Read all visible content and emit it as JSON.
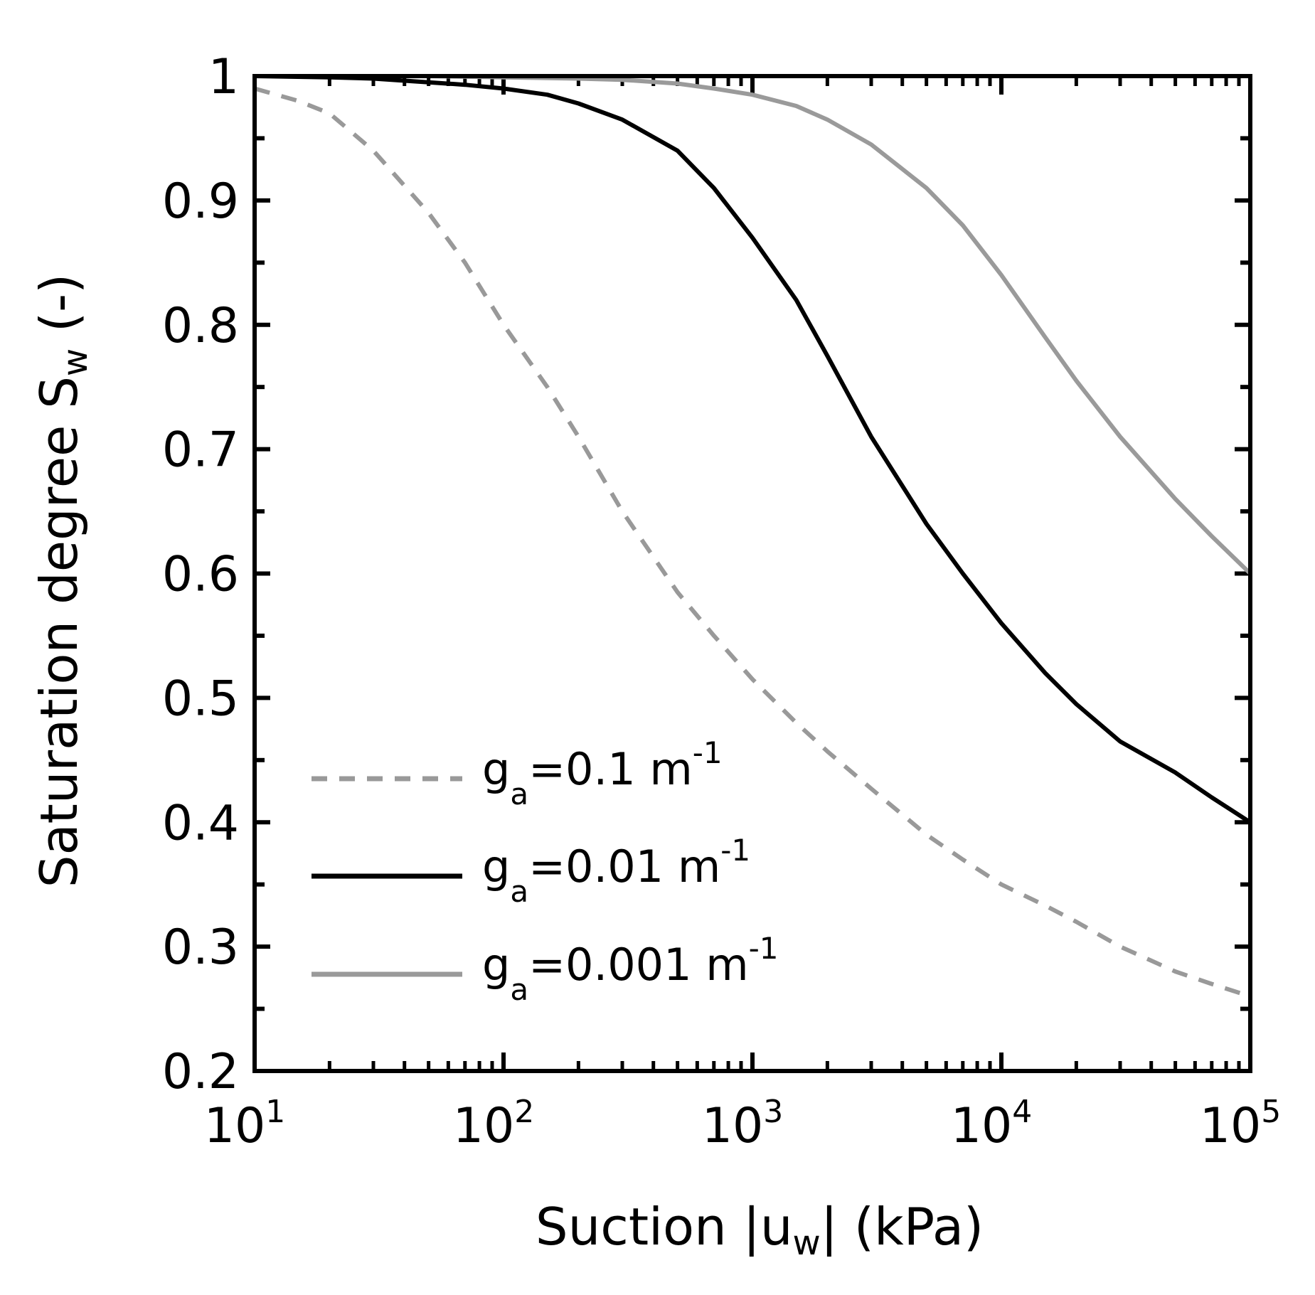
{
  "chart_data": {
    "type": "line",
    "title": "",
    "xscale": "log",
    "xlim": [
      10,
      100000
    ],
    "ylim": [
      0.2,
      1.0
    ],
    "xlabel": {
      "main": "Suction |u",
      "sub": "w",
      "tail": "| (kPa)"
    },
    "ylabel": {
      "main": "Saturation degree S",
      "sub": "w",
      "tail": " (-)"
    },
    "x_ticks": [
      {
        "base": "10",
        "exp": "1",
        "value": 10
      },
      {
        "base": "10",
        "exp": "2",
        "value": 100
      },
      {
        "base": "10",
        "exp": "3",
        "value": 1000
      },
      {
        "base": "10",
        "exp": "4",
        "value": 10000
      },
      {
        "base": "10",
        "exp": "5",
        "value": 100000
      }
    ],
    "y_ticks": [
      {
        "label": "0.2",
        "value": 0.2
      },
      {
        "label": "0.3",
        "value": 0.3
      },
      {
        "label": "0.4",
        "value": 0.4
      },
      {
        "label": "0.5",
        "value": 0.5
      },
      {
        "label": "0.6",
        "value": 0.6
      },
      {
        "label": "0.7",
        "value": 0.7
      },
      {
        "label": "0.8",
        "value": 0.8
      },
      {
        "label": "0.9",
        "value": 0.9
      },
      {
        "label": "1",
        "value": 1.0
      }
    ],
    "legend_position": "lower-left",
    "series": [
      {
        "name": "g_a=0.1 m^-1",
        "legend": {
          "base": "g",
          "sub": "a",
          "text": "=0.1 m",
          "sup": "-1"
        },
        "color": "#999999",
        "style": "dashed",
        "points": [
          [
            10,
            0.99
          ],
          [
            15,
            0.98
          ],
          [
            20,
            0.97
          ],
          [
            30,
            0.94
          ],
          [
            50,
            0.89
          ],
          [
            70,
            0.85
          ],
          [
            100,
            0.8
          ],
          [
            150,
            0.75
          ],
          [
            200,
            0.71
          ],
          [
            300,
            0.65
          ],
          [
            500,
            0.585
          ],
          [
            700,
            0.55
          ],
          [
            1000,
            0.515
          ],
          [
            1500,
            0.48
          ],
          [
            2000,
            0.457
          ],
          [
            3000,
            0.427
          ],
          [
            5000,
            0.39
          ],
          [
            7000,
            0.37
          ],
          [
            10000,
            0.35
          ],
          [
            15000,
            0.333
          ],
          [
            20000,
            0.32
          ],
          [
            30000,
            0.3
          ],
          [
            50000,
            0.28
          ],
          [
            70000,
            0.27
          ],
          [
            100000,
            0.26
          ]
        ]
      },
      {
        "name": "g_a=0.01 m^-1",
        "legend": {
          "base": "g",
          "sub": "a",
          "text": "=0.01 m",
          "sup": "-1"
        },
        "color": "#000000",
        "style": "solid",
        "points": [
          [
            10,
            1.0
          ],
          [
            20,
            0.999
          ],
          [
            30,
            0.998
          ],
          [
            50,
            0.995
          ],
          [
            70,
            0.993
          ],
          [
            100,
            0.99
          ],
          [
            150,
            0.985
          ],
          [
            200,
            0.978
          ],
          [
            300,
            0.965
          ],
          [
            500,
            0.94
          ],
          [
            700,
            0.91
          ],
          [
            1000,
            0.87
          ],
          [
            1500,
            0.82
          ],
          [
            2000,
            0.775
          ],
          [
            3000,
            0.71
          ],
          [
            5000,
            0.64
          ],
          [
            7000,
            0.6
          ],
          [
            10000,
            0.56
          ],
          [
            15000,
            0.52
          ],
          [
            20000,
            0.495
          ],
          [
            30000,
            0.465
          ],
          [
            50000,
            0.44
          ],
          [
            70000,
            0.42
          ],
          [
            100000,
            0.4
          ]
        ]
      },
      {
        "name": "g_a=0.001 m^-1",
        "legend": {
          "base": "g",
          "sub": "a",
          "text": "=0.001 m",
          "sup": "-1"
        },
        "color": "#9a9a9a",
        "style": "solid",
        "points": [
          [
            10,
            1.0
          ],
          [
            50,
            1.0
          ],
          [
            100,
            0.999
          ],
          [
            200,
            0.998
          ],
          [
            300,
            0.997
          ],
          [
            500,
            0.994
          ],
          [
            700,
            0.99
          ],
          [
            1000,
            0.985
          ],
          [
            1500,
            0.976
          ],
          [
            2000,
            0.965
          ],
          [
            3000,
            0.945
          ],
          [
            5000,
            0.91
          ],
          [
            7000,
            0.88
          ],
          [
            10000,
            0.84
          ],
          [
            15000,
            0.79
          ],
          [
            20000,
            0.755
          ],
          [
            30000,
            0.71
          ],
          [
            50000,
            0.66
          ],
          [
            70000,
            0.63
          ],
          [
            100000,
            0.6
          ]
        ]
      }
    ]
  }
}
